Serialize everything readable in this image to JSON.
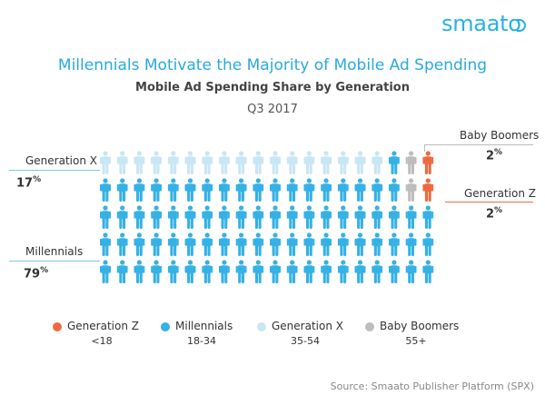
{
  "brand": {
    "name": "smaato"
  },
  "chart_data": {
    "type": "pictograph",
    "title": "Millennials Motivate the Majority of Mobile Ad Spending",
    "subtitle": "Mobile Ad Spending Share by Generation",
    "period": "Q3 2017",
    "total_icons": 100,
    "series": [
      {
        "key": "genz",
        "name": "Generation Z",
        "age": "<18",
        "value": 2,
        "color": "#ec6a3e"
      },
      {
        "key": "millennials",
        "name": "Millennials",
        "age": "18-34",
        "value": 79,
        "color": "#35b1e6"
      },
      {
        "key": "genx",
        "name": "Generation X",
        "age": "35-54",
        "value": 17,
        "color": "#c9e6f4"
      },
      {
        "key": "boomers",
        "name": "Baby Boomers",
        "age": "55+",
        "value": 2,
        "color": "#bdbdbd"
      }
    ],
    "callouts": {
      "genx": {
        "label": "Generation X",
        "value": "17",
        "unit": "%"
      },
      "millennials": {
        "label": "Millennials",
        "value": "79",
        "unit": "%"
      },
      "boomers": {
        "label": "Baby Boomers",
        "value": "2",
        "unit": "%"
      },
      "genz": {
        "label": "Generation Z",
        "value": "2",
        "unit": "%"
      }
    },
    "source": "Source: Smaato Publisher Platform (SPX)"
  }
}
